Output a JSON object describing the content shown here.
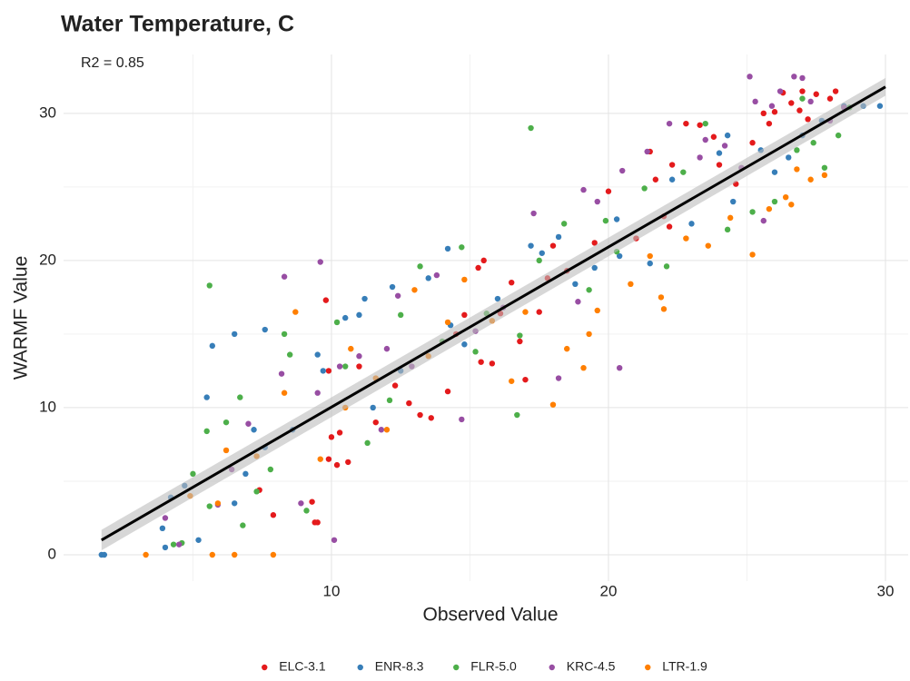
{
  "chart_data": {
    "type": "scatter",
    "title": "Water Temperature, C",
    "annotation": "R2 = 0.85",
    "x_label": "Observed Value",
    "y_label": "WARMF Value",
    "xlim": [
      0.33,
      30.82
    ],
    "ylim": [
      -1.79,
      34.0
    ],
    "xticks": [
      10,
      20,
      30
    ],
    "yticks": [
      0,
      10,
      20,
      30
    ],
    "minor_xticks": [
      5,
      15,
      25
    ],
    "minor_yticks": [
      5,
      15,
      25
    ],
    "grid": true,
    "legend": "bottom",
    "fit_line": {
      "color": "#000000",
      "band_color": "#bdbdbd",
      "x": [
        1.7,
        30
      ],
      "y": [
        1.0,
        31.8
      ],
      "lower": [
        0.3,
        31.2
      ],
      "upper": [
        1.7,
        32.4
      ]
    },
    "series": [
      {
        "name": "ELC-3.1",
        "color": "#e41a1c",
        "x": [
          9.3,
          9.4,
          9.5,
          7.9,
          7.4,
          9.9,
          10.2,
          10.6,
          10.0,
          10.3,
          9.9,
          9.8,
          11.0,
          11.6,
          12.3,
          12.8,
          13.2,
          13.6,
          14.2,
          14.5,
          14.8,
          15.3,
          15.5,
          15.4,
          15.8,
          16.1,
          16.5,
          16.8,
          17.0,
          17.5,
          17.8,
          18.0,
          18.5,
          19.5,
          20.0,
          21.0,
          21.7,
          22.0,
          22.3,
          22.8,
          23.3,
          23.8,
          24.0,
          24.6,
          25.2,
          25.6,
          26.0,
          26.3,
          26.6,
          26.9,
          27.0,
          27.2,
          27.5,
          28.0,
          28.2,
          25.8,
          22.2,
          21.5
        ],
        "values": [
          3.6,
          2.2,
          2.2,
          2.7,
          4.4,
          6.5,
          6.1,
          6.3,
          8.0,
          8.3,
          12.5,
          17.3,
          12.8,
          9.0,
          11.5,
          10.3,
          9.5,
          9.3,
          11.1,
          15.0,
          16.3,
          19.5,
          20.0,
          13.1,
          13.0,
          16.4,
          18.5,
          14.5,
          11.9,
          16.5,
          18.8,
          21.0,
          19.3,
          21.2,
          24.7,
          21.5,
          25.5,
          23.0,
          26.5,
          29.3,
          29.2,
          28.4,
          26.5,
          25.2,
          28.0,
          30.0,
          30.1,
          31.4,
          30.7,
          30.2,
          31.5,
          29.6,
          31.3,
          31.0,
          31.5,
          29.3,
          22.3,
          27.4
        ]
      },
      {
        "name": "ENR-8.3",
        "color": "#377eb8",
        "x": [
          1.7,
          1.8,
          3.9,
          4.0,
          5.2,
          4.2,
          4.7,
          5.5,
          5.7,
          6.5,
          7.6,
          6.5,
          6.9,
          7.2,
          7.6,
          8.6,
          9.5,
          9.7,
          10.5,
          11.0,
          11.2,
          11.5,
          12.2,
          12.5,
          13.5,
          14.2,
          14.3,
          14.8,
          16.0,
          17.2,
          17.6,
          18.2,
          19.5,
          20.3,
          20.4,
          21.5,
          22.3,
          23.0,
          24.0,
          24.5,
          25.5,
          26.0,
          27.0,
          27.7,
          28.5,
          29.2,
          29.8,
          26.5,
          24.3,
          18.8
        ],
        "values": [
          0,
          0,
          1.8,
          0.5,
          1.0,
          3.9,
          4.7,
          10.7,
          14.2,
          15.0,
          15.3,
          3.5,
          5.5,
          8.5,
          7.3,
          8.5,
          13.6,
          12.5,
          16.1,
          16.3,
          17.4,
          10.0,
          18.2,
          12.5,
          18.8,
          20.8,
          15.6,
          14.3,
          17.4,
          21.0,
          20.5,
          21.6,
          19.5,
          22.8,
          20.3,
          19.8,
          25.5,
          22.5,
          27.3,
          24.0,
          27.5,
          26.0,
          28.5,
          29.5,
          30.5,
          30.5,
          30.5,
          27.0,
          28.5,
          18.4
        ]
      },
      {
        "name": "FLR-5.0",
        "color": "#4daf4a",
        "x": [
          4.3,
          4.6,
          5.0,
          5.6,
          5.5,
          5.6,
          6.2,
          6.7,
          6.8,
          7.3,
          7.8,
          8.3,
          8.5,
          9.1,
          10.2,
          10.5,
          11.3,
          12.1,
          12.5,
          13.2,
          14.0,
          14.7,
          15.2,
          15.6,
          16.7,
          16.8,
          17.2,
          17.5,
          18.4,
          19.3,
          19.9,
          20.3,
          21.3,
          22.1,
          22.7,
          23.5,
          24.3,
          25.2,
          26.0,
          26.8,
          27.4,
          27.8,
          28.3,
          28.7,
          27.0
        ],
        "values": [
          0.7,
          0.8,
          5.5,
          3.3,
          8.4,
          18.3,
          9.0,
          10.7,
          2.0,
          4.3,
          5.8,
          15.0,
          13.6,
          3.0,
          15.8,
          12.8,
          7.6,
          10.5,
          16.3,
          19.6,
          14.5,
          20.9,
          13.8,
          16.4,
          9.5,
          14.9,
          29.0,
          20.0,
          22.5,
          18.0,
          22.7,
          20.6,
          24.9,
          19.6,
          26.0,
          29.3,
          22.1,
          23.3,
          24.0,
          27.5,
          28.0,
          26.3,
          28.5,
          30.4,
          31.0
        ]
      },
      {
        "name": "KRC-4.5",
        "color": "#984ea3",
        "x": [
          4.0,
          4.5,
          5.9,
          6.4,
          7.0,
          8.3,
          8.2,
          8.9,
          9.5,
          9.6,
          10.1,
          10.3,
          11.0,
          11.8,
          12.0,
          12.4,
          12.9,
          13.8,
          14.7,
          15.2,
          16.2,
          17.3,
          18.2,
          18.9,
          19.1,
          19.6,
          20.4,
          20.5,
          21.4,
          22.2,
          23.3,
          23.5,
          24.2,
          25.1,
          25.3,
          25.9,
          26.2,
          26.7,
          27.0,
          27.3,
          28.0,
          28.5,
          24.8,
          25.6
        ],
        "values": [
          2.5,
          0.7,
          3.4,
          5.8,
          8.9,
          18.9,
          12.3,
          3.5,
          11.0,
          19.9,
          1.0,
          12.8,
          13.5,
          8.5,
          14.0,
          17.6,
          12.8,
          19.0,
          9.2,
          15.2,
          16.8,
          23.2,
          12.0,
          17.2,
          24.8,
          24.0,
          12.7,
          26.1,
          27.4,
          29.3,
          27.0,
          28.2,
          27.8,
          32.5,
          30.8,
          30.5,
          31.5,
          32.5,
          32.4,
          30.8,
          29.5,
          30.4,
          26.3,
          22.7
        ]
      },
      {
        "name": "LTR-1.9",
        "color": "#ff7f00",
        "x": [
          3.3,
          5.7,
          6.5,
          7.9,
          4.9,
          5.9,
          6.2,
          7.3,
          8.3,
          8.7,
          9.6,
          10.5,
          10.7,
          11.6,
          12.0,
          13.0,
          13.5,
          14.2,
          14.8,
          15.8,
          16.5,
          17.0,
          18.0,
          18.5,
          19.1,
          19.3,
          19.6,
          20.8,
          21.5,
          21.9,
          22.0,
          22.8,
          23.6,
          24.4,
          25.2,
          25.8,
          26.4,
          26.8,
          27.3,
          27.8,
          26.6
        ],
        "values": [
          0,
          0,
          0,
          0,
          4.0,
          3.5,
          7.1,
          6.7,
          11.0,
          16.5,
          6.5,
          10.0,
          14.0,
          12.0,
          8.5,
          18.0,
          13.5,
          15.8,
          18.7,
          15.9,
          11.8,
          16.5,
          10.2,
          14.0,
          12.7,
          15.0,
          16.6,
          18.4,
          20.3,
          17.5,
          16.7,
          21.5,
          21.0,
          22.9,
          20.4,
          23.5,
          24.3,
          26.2,
          25.5,
          25.8,
          23.8
        ]
      }
    ]
  }
}
